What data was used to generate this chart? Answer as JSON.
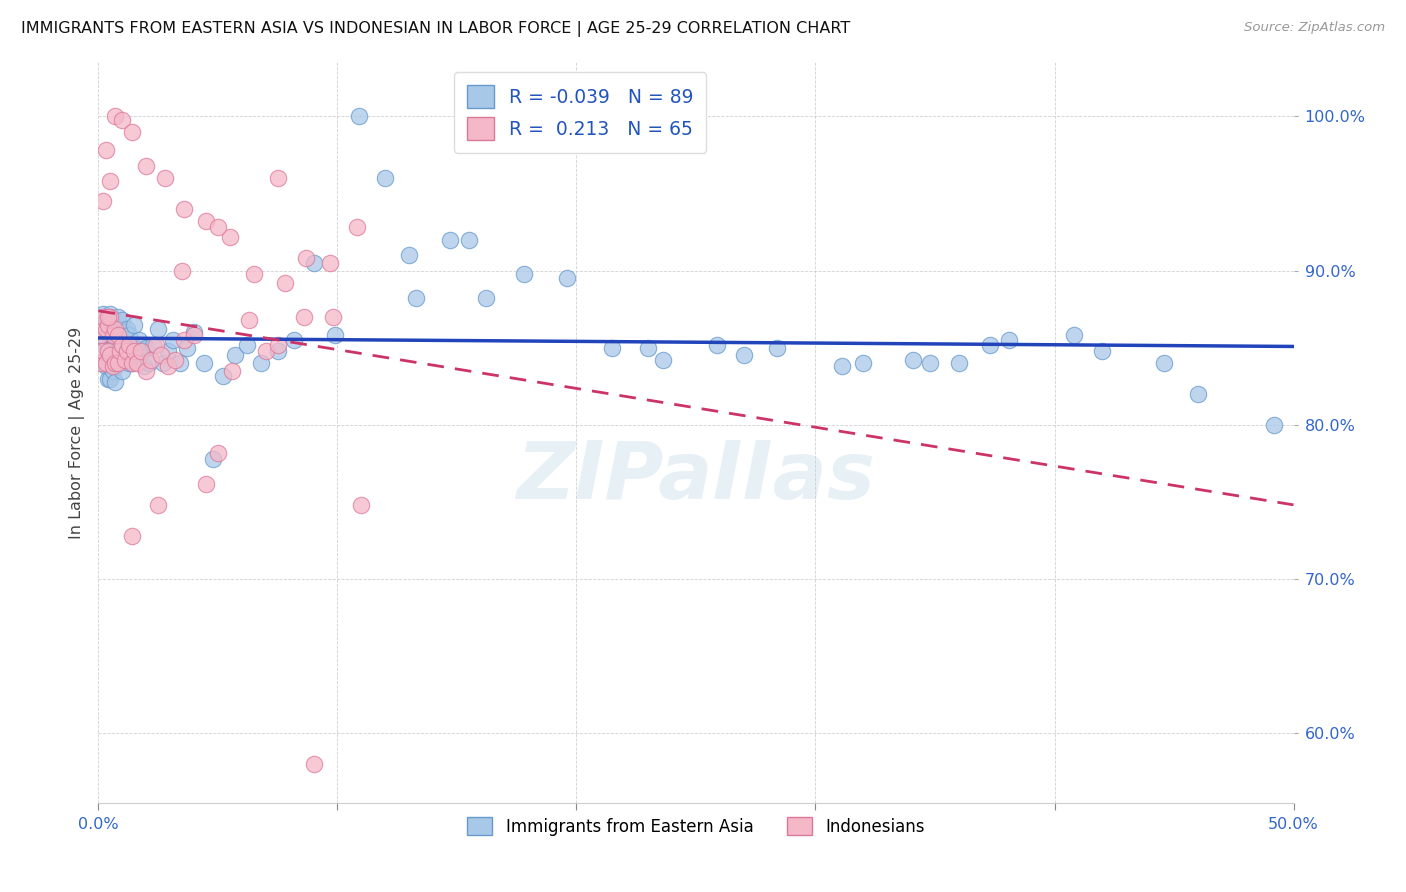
{
  "title": "IMMIGRANTS FROM EASTERN ASIA VS INDONESIAN IN LABOR FORCE | AGE 25-29 CORRELATION CHART",
  "source": "Source: ZipAtlas.com",
  "ylabel": "In Labor Force | Age 25-29",
  "x_min": 0.0,
  "x_max": 0.5,
  "y_min": 0.555,
  "y_max": 1.035,
  "x_tick_left_label": "0.0%",
  "x_tick_right_label": "50.0%",
  "y_ticks": [
    0.6,
    0.7,
    0.8,
    0.9,
    1.0
  ],
  "y_tick_labels": [
    "60.0%",
    "70.0%",
    "80.0%",
    "90.0%",
    "100.0%"
  ],
  "blue_R": -0.039,
  "blue_N": 89,
  "pink_R": 0.213,
  "pink_N": 65,
  "blue_color": "#a8c8e8",
  "pink_color": "#f4b8c8",
  "blue_edge": "#6699cc",
  "pink_edge": "#dd7799",
  "trend_blue": "#2244bb",
  "trend_pink": "#cc3366",
  "legend_label_blue": "Immigrants from Eastern Asia",
  "legend_label_pink": "Indonesians",
  "blue_x": [
    0.001,
    0.001,
    0.002,
    0.002,
    0.003,
    0.003,
    0.003,
    0.004,
    0.004,
    0.004,
    0.005,
    0.005,
    0.005,
    0.005,
    0.006,
    0.006,
    0.006,
    0.007,
    0.007,
    0.007,
    0.007,
    0.008,
    0.008,
    0.008,
    0.009,
    0.009,
    0.01,
    0.01,
    0.01,
    0.011,
    0.011,
    0.012,
    0.012,
    0.013,
    0.013,
    0.014,
    0.014,
    0.015,
    0.016,
    0.017,
    0.018,
    0.019,
    0.02,
    0.021,
    0.023,
    0.025,
    0.027,
    0.029,
    0.031,
    0.034,
    0.037,
    0.04,
    0.044,
    0.048,
    0.052,
    0.057,
    0.062,
    0.068,
    0.075,
    0.082,
    0.09,
    0.099,
    0.109,
    0.12,
    0.133,
    0.147,
    0.162,
    0.178,
    0.196,
    0.215,
    0.236,
    0.259,
    0.284,
    0.311,
    0.341,
    0.373,
    0.408,
    0.446,
    0.348,
    0.381,
    0.42,
    0.46,
    0.492,
    0.13,
    0.155,
    0.23,
    0.27,
    0.32,
    0.36
  ],
  "blue_y": [
    0.855,
    0.84,
    0.872,
    0.845,
    0.868,
    0.855,
    0.838,
    0.862,
    0.848,
    0.83,
    0.872,
    0.858,
    0.845,
    0.83,
    0.865,
    0.85,
    0.835,
    0.868,
    0.855,
    0.84,
    0.828,
    0.87,
    0.855,
    0.84,
    0.862,
    0.845,
    0.868,
    0.85,
    0.835,
    0.86,
    0.845,
    0.862,
    0.848,
    0.858,
    0.84,
    0.852,
    0.84,
    0.865,
    0.845,
    0.855,
    0.848,
    0.838,
    0.85,
    0.84,
    0.852,
    0.862,
    0.84,
    0.848,
    0.855,
    0.84,
    0.85,
    0.86,
    0.84,
    0.778,
    0.832,
    0.845,
    0.852,
    0.84,
    0.848,
    0.855,
    0.905,
    0.858,
    1.0,
    0.96,
    0.882,
    0.92,
    0.882,
    0.898,
    0.895,
    0.85,
    0.842,
    0.852,
    0.85,
    0.838,
    0.842,
    0.852,
    0.858,
    0.84,
    0.84,
    0.855,
    0.848,
    0.82,
    0.8,
    0.91,
    0.92,
    0.85,
    0.845,
    0.84,
    0.84
  ],
  "pink_x": [
    0.001,
    0.001,
    0.002,
    0.002,
    0.003,
    0.003,
    0.004,
    0.004,
    0.005,
    0.005,
    0.006,
    0.006,
    0.007,
    0.007,
    0.008,
    0.008,
    0.009,
    0.01,
    0.011,
    0.012,
    0.013,
    0.014,
    0.015,
    0.016,
    0.018,
    0.02,
    0.022,
    0.024,
    0.026,
    0.029,
    0.032,
    0.036,
    0.04,
    0.045,
    0.05,
    0.056,
    0.063,
    0.07,
    0.078,
    0.087,
    0.097,
    0.108,
    0.002,
    0.003,
    0.004,
    0.005,
    0.007,
    0.01,
    0.014,
    0.02,
    0.028,
    0.036,
    0.045,
    0.055,
    0.065,
    0.075,
    0.086,
    0.098,
    0.11,
    0.014,
    0.025,
    0.035,
    0.05,
    0.075,
    0.09
  ],
  "pink_y": [
    0.858,
    0.84,
    0.87,
    0.848,
    0.862,
    0.84,
    0.865,
    0.848,
    0.87,
    0.845,
    0.858,
    0.838,
    0.862,
    0.84,
    0.858,
    0.84,
    0.848,
    0.852,
    0.842,
    0.848,
    0.852,
    0.84,
    0.848,
    0.84,
    0.848,
    0.835,
    0.842,
    0.852,
    0.845,
    0.838,
    0.842,
    0.855,
    0.858,
    0.762,
    0.782,
    0.835,
    0.868,
    0.848,
    0.892,
    0.908,
    0.905,
    0.928,
    0.945,
    0.978,
    0.87,
    0.958,
    1.0,
    0.998,
    0.99,
    0.968,
    0.96,
    0.94,
    0.932,
    0.922,
    0.898,
    0.852,
    0.87,
    0.87,
    0.748,
    0.728,
    0.748,
    0.9,
    0.928,
    0.96,
    0.58
  ]
}
